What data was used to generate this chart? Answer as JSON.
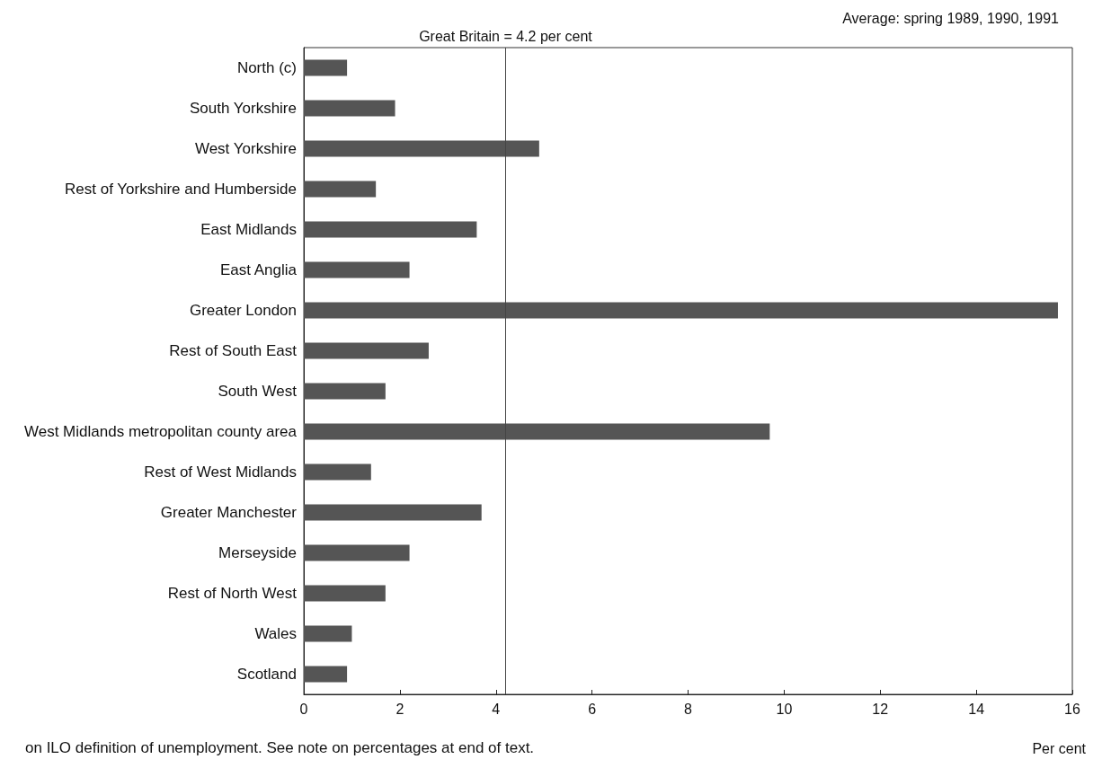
{
  "chart_data": {
    "type": "bar",
    "orientation": "horizontal",
    "subtitle": "Average: spring 1989, 1990, 1991",
    "categories": [
      "North (c)",
      "South Yorkshire",
      "West Yorkshire",
      "Rest of Yorkshire and Humberside",
      "East Midlands",
      "East Anglia",
      "Greater London",
      "Rest of South East",
      "South West",
      "West Midlands metropolitan county area",
      "Rest of West Midlands",
      "Greater Manchester",
      "Merseyside",
      "Rest of North West",
      "Wales",
      "Scotland"
    ],
    "values": [
      0.9,
      1.9,
      4.9,
      1.5,
      3.6,
      2.2,
      15.7,
      2.6,
      1.7,
      9.7,
      1.4,
      3.7,
      2.2,
      1.7,
      1.0,
      0.9
    ],
    "color": "#555555",
    "xlim": [
      0,
      16
    ],
    "xticks": [
      0,
      2,
      4,
      6,
      8,
      10,
      12,
      14,
      16
    ],
    "xlabel": "Per cent",
    "ref_lines": [
      {
        "axis": "x",
        "value": 4.2,
        "label": "Great Britain = 4.2 per cent",
        "color": "#444444"
      }
    ],
    "annotations": [
      "on ILO definition of unemployment. See note on percentages at end of text."
    ],
    "grid": false
  }
}
